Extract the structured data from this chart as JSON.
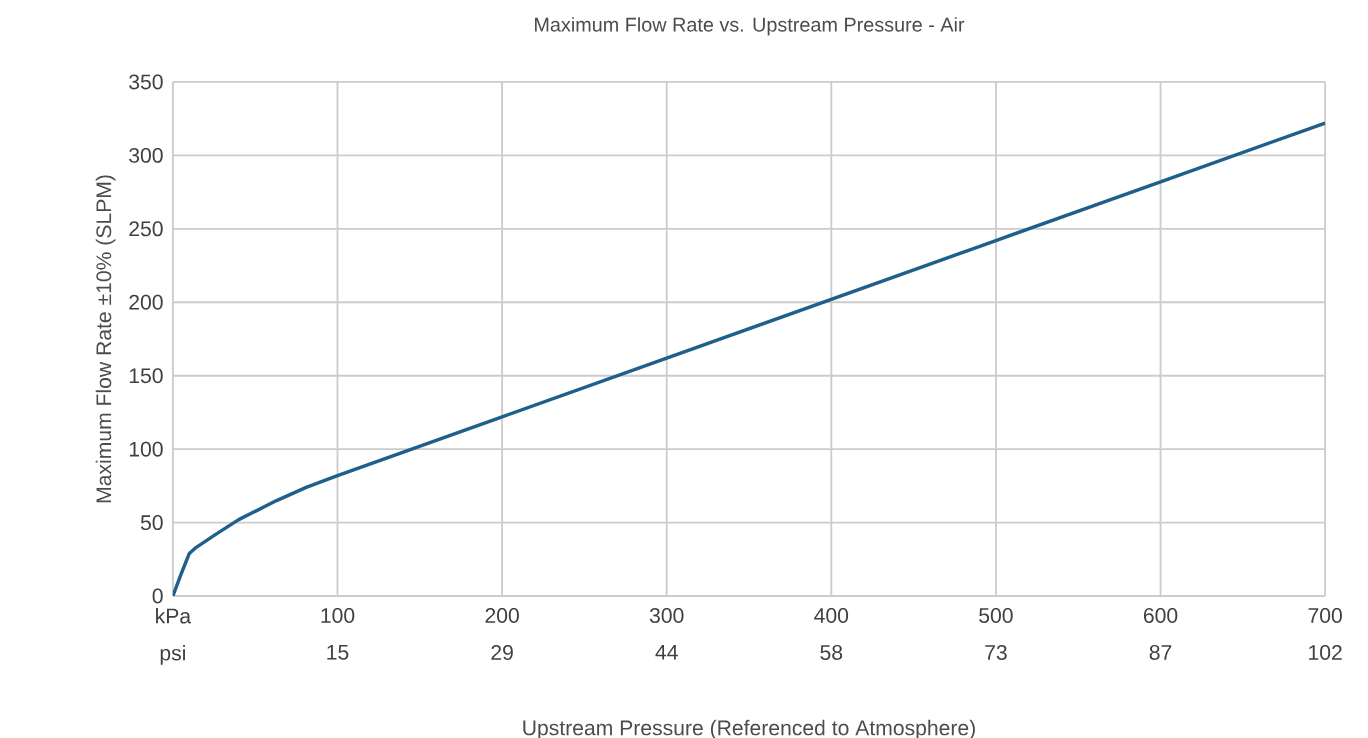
{
  "chart_data": {
    "type": "line",
    "title": "Maximum Flow Rate vs. Upstream Pressure - Air",
    "xlabel": "Upstream Pressure (Referenced to Atmosphere)",
    "ylabel": "Maximum Flow Rate ±10% (SLPM)",
    "series": [
      {
        "color": "#1f5f8b",
        "x": [
          0,
          5,
          10,
          14,
          26,
          40,
          63,
          81,
          100,
          200,
          300,
          400,
          500,
          600,
          700
        ],
        "values": [
          0,
          15,
          29,
          33,
          42,
          52,
          65,
          74,
          82,
          122,
          162,
          202,
          242,
          282,
          322
        ]
      }
    ],
    "xlim": [
      0,
      700
    ],
    "xticks": [
      {
        "value": 0,
        "label": "kPa"
      },
      100,
      200,
      300,
      400,
      500,
      600,
      700
    ],
    "x2lim": [
      0,
      101.5
    ],
    "x2ticks": [
      {
        "value": 0,
        "label": "psi"
      },
      {
        "value": 14.5,
        "label": "15"
      },
      29,
      {
        "value": 43.5,
        "label": "44"
      },
      58,
      {
        "value": 72.5,
        "label": "73"
      },
      87,
      {
        "value": 101.5,
        "label": "102"
      }
    ],
    "ylim": [
      0,
      350
    ],
    "yticks": [
      0,
      50,
      100,
      150,
      200,
      250,
      300,
      350
    ],
    "grid": true,
    "legend": false,
    "marker": "none",
    "line_style": "solid"
  }
}
